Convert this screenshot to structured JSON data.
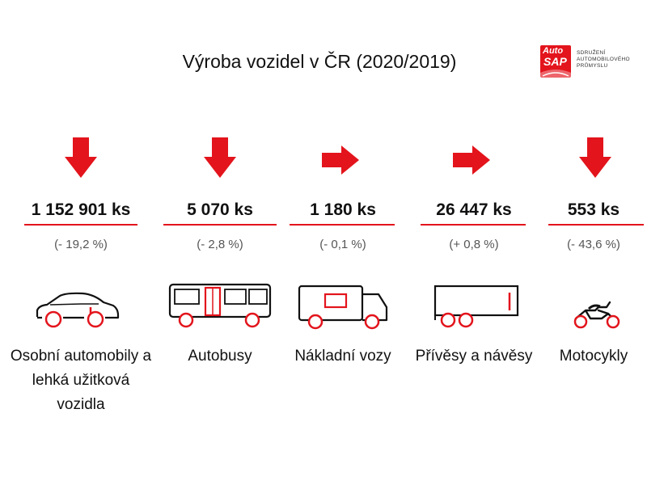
{
  "title": "Výroba vozidel v ČR (2020/2019)",
  "logo": {
    "auto": "Auto",
    "sap": "SAP",
    "line1": "SDRUŽENÍ",
    "line2": "AUTOMOBILOVÉHO",
    "line3": "PRŮMYSLU"
  },
  "colors": {
    "accent": "#e3141c",
    "text": "#111111",
    "muted": "#555555"
  },
  "categories": [
    {
      "value": "1 152 901 ks",
      "change": "(- 19,2 %)",
      "label": "Osobní automobily a lehká užitková vozidla",
      "trend": "down",
      "icon": "car-icon"
    },
    {
      "value": "5 070 ks",
      "change": "(- 2,8 %)",
      "label": "Autobusy",
      "trend": "down",
      "icon": "bus-icon"
    },
    {
      "value": "1 180 ks",
      "change": "(- 0,1 %)",
      "label": "Nákladní vozy",
      "trend": "flat",
      "icon": "truck-icon"
    },
    {
      "value": "26 447 ks",
      "change": "(+ 0,8 %)",
      "label": "Přívěsy a návěsy",
      "trend": "flat",
      "icon": "trailer-icon"
    },
    {
      "value": "553 ks",
      "change": "(- 43,6 %)",
      "label": "Motocykly",
      "trend": "down",
      "icon": "motorcycle-icon"
    }
  ]
}
